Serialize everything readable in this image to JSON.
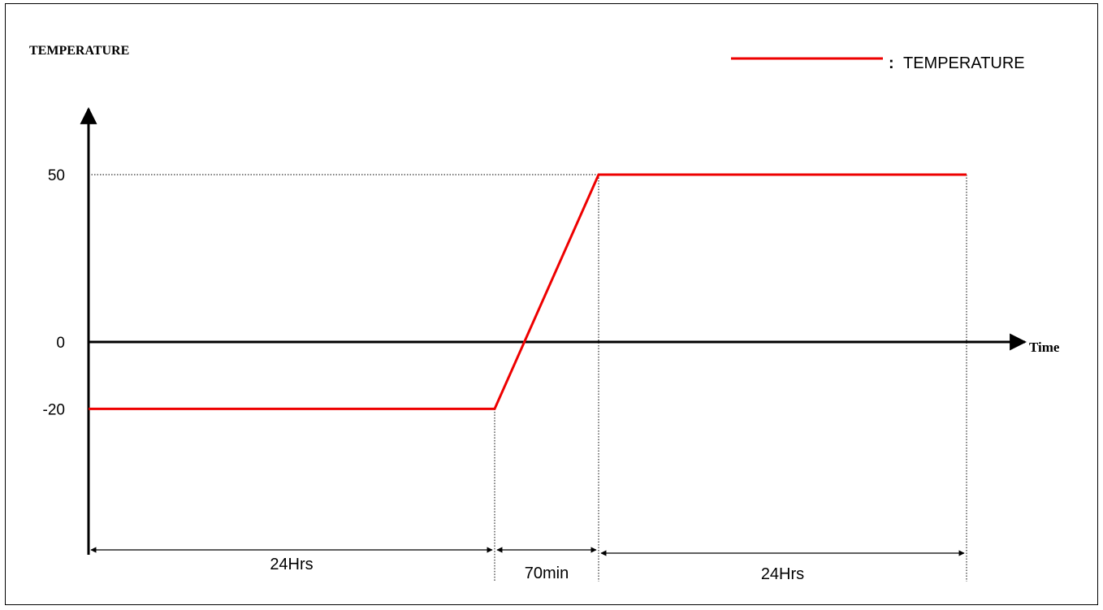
{
  "chart_data": {
    "type": "line",
    "ylabel": "TEMPERATURE",
    "xlabel": "Time",
    "legend": {
      "entries": [
        "TEMPERATURE"
      ],
      "prefix": ":",
      "placement": "top-right"
    },
    "y_ticks": [
      "50",
      "0",
      "-20"
    ],
    "y_tick_values": [
      50,
      0,
      -20
    ],
    "ylim": [
      -33,
      70
    ],
    "series": [
      {
        "name": "TEMPERATURE",
        "segments": [
          {
            "label": "24Hrs",
            "start": -20,
            "end": -20
          },
          {
            "label": "70min",
            "start": -20,
            "end": 50
          },
          {
            "label": "24Hrs",
            "start": 50,
            "end": 50
          }
        ]
      }
    ],
    "durations": [
      "24Hrs",
      "70min",
      "24Hrs"
    ],
    "grid": false,
    "colors": {
      "series": "#ee0000",
      "axis": "#000000",
      "guide": "#000000"
    }
  }
}
